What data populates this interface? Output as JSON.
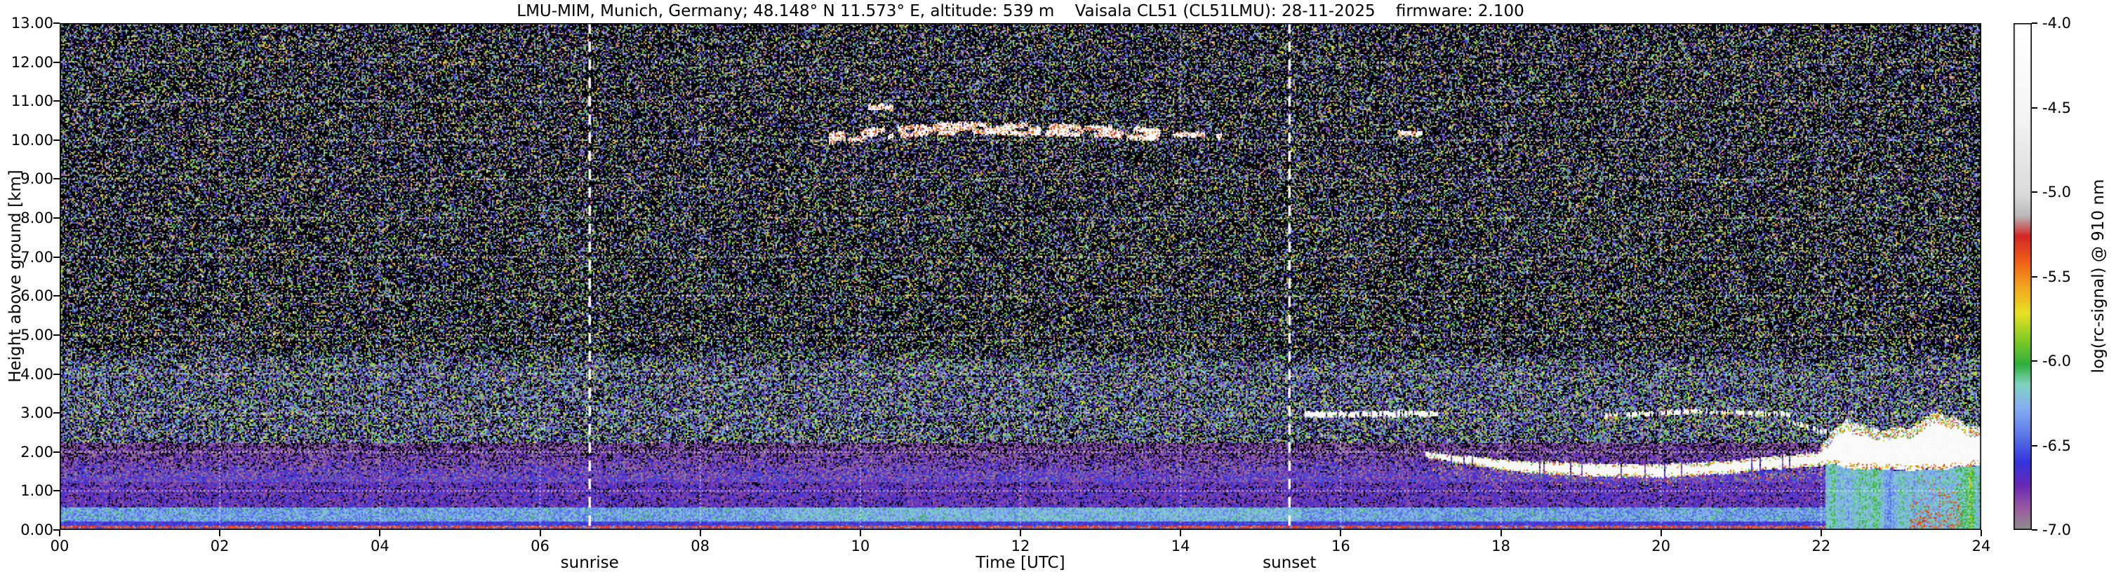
{
  "chart_data": {
    "type": "heatmap",
    "title": "LMU-MIM, Munich, Germany; 48.148° N 11.573° E, altitude: 539 m    Vaisala CL51 (CL51LMU): 28-11-2025    firmware: 2.100",
    "xlabel": "Time [UTC]",
    "ylabel": "Height above ground [km]",
    "xlim": [
      0,
      24
    ],
    "ylim": [
      0,
      13
    ],
    "x_ticks": [
      {
        "v": 0,
        "label": "00"
      },
      {
        "v": 2,
        "label": "02"
      },
      {
        "v": 4,
        "label": "04"
      },
      {
        "v": 6,
        "label": "06"
      },
      {
        "v": 8,
        "label": "08"
      },
      {
        "v": 10,
        "label": "10"
      },
      {
        "v": 12,
        "label": "12"
      },
      {
        "v": 14,
        "label": "14"
      },
      {
        "v": 16,
        "label": "16"
      },
      {
        "v": 18,
        "label": "18"
      },
      {
        "v": 20,
        "label": "20"
      },
      {
        "v": 22,
        "label": "22"
      },
      {
        "v": 24,
        "label": "24"
      }
    ],
    "y_ticks": [
      {
        "v": 0,
        "label": "0.00"
      },
      {
        "v": 1,
        "label": "1.00"
      },
      {
        "v": 2,
        "label": "2.00"
      },
      {
        "v": 3,
        "label": "3.00"
      },
      {
        "v": 4,
        "label": "4.00"
      },
      {
        "v": 5,
        "label": "5.00"
      },
      {
        "v": 6,
        "label": "6.00"
      },
      {
        "v": 7,
        "label": "7.00"
      },
      {
        "v": 8,
        "label": "8.00"
      },
      {
        "v": 9,
        "label": "9.00"
      },
      {
        "v": 10,
        "label": "10.00"
      },
      {
        "v": 11,
        "label": "11.00"
      },
      {
        "v": 12,
        "label": "12.00"
      },
      {
        "v": 13,
        "label": "13.00"
      }
    ],
    "grid": {
      "horizontal_every_km": 1,
      "vertical_every_h": 2,
      "style": "dotted",
      "color": "#ffffff"
    },
    "annotations": {
      "sunrise": {
        "t": 6.62,
        "label": "sunrise",
        "line_style": "dashed",
        "line_color": "#ffffff"
      },
      "sunset": {
        "t": 15.36,
        "label": "sunset",
        "line_style": "dashed",
        "line_color": "#ffffff"
      }
    },
    "colorbar": {
      "label": "log(rc-signal) @ 910 nm",
      "vmin": -7.0,
      "vmax": -4.0,
      "ticks": [
        {
          "v": -4.0,
          "label": "-4.0"
        },
        {
          "v": -4.5,
          "label": "-4.5"
        },
        {
          "v": -5.0,
          "label": "-5.0"
        },
        {
          "v": -5.5,
          "label": "-5.5"
        },
        {
          "v": -6.0,
          "label": "-6.0"
        },
        {
          "v": -6.5,
          "label": "-6.5"
        },
        {
          "v": -7.0,
          "label": "-7.0"
        }
      ],
      "under_color": "#000000",
      "stops": [
        {
          "v": -7.0,
          "color": "#8f8f8f"
        },
        {
          "v": -6.88,
          "color": "#9a5d9e"
        },
        {
          "v": -6.74,
          "color": "#6a28b4"
        },
        {
          "v": -6.6,
          "color": "#3434dc"
        },
        {
          "v": -6.44,
          "color": "#5a78e8"
        },
        {
          "v": -6.28,
          "color": "#86aef4"
        },
        {
          "v": -6.14,
          "color": "#7fd4c0"
        },
        {
          "v": -6.02,
          "color": "#2fae3c"
        },
        {
          "v": -5.88,
          "color": "#7ecb23"
        },
        {
          "v": -5.72,
          "color": "#e8e123"
        },
        {
          "v": -5.56,
          "color": "#f2a51e"
        },
        {
          "v": -5.4,
          "color": "#ee5a17"
        },
        {
          "v": -5.26,
          "color": "#d42727"
        },
        {
          "v": -5.14,
          "color": "#b8b8b8"
        },
        {
          "v": -5.02,
          "color": "#d9d9d9"
        },
        {
          "v": -4.55,
          "color": "#f4f4f4"
        },
        {
          "v": -4.0,
          "color": "#ffffff"
        }
      ]
    },
    "background": {
      "surface_blue_km": 0.05,
      "surface_red_line_km": [
        0.05,
        0.13
      ],
      "purple_blue_km": [
        0.13,
        0.25
      ],
      "blue_band_km": [
        0.25,
        0.58
      ],
      "magenta_zone_km": [
        0.58,
        1.25
      ],
      "gray_speckle_zone_km": [
        1.25,
        2.25
      ],
      "blue_haze_km": [
        2.25,
        4.7
      ],
      "free_atmosphere_black_fraction": 0.56
    },
    "features": [
      {
        "kind": "cirrus",
        "name": "cirrus-band",
        "t0": 9.6,
        "t1": 13.75,
        "path": [
          [
            9.6,
            10.05
          ],
          [
            10.3,
            10.2
          ],
          [
            11.2,
            10.32
          ],
          [
            12.4,
            10.28
          ],
          [
            13.1,
            10.22
          ],
          [
            13.75,
            10.15
          ]
        ],
        "streaks": 3,
        "gaplen": 16
      },
      {
        "kind": "cirrus",
        "name": "cirrus-wisp-1",
        "t0": 13.9,
        "t1": 14.65,
        "path": [
          [
            13.9,
            10.16
          ],
          [
            14.65,
            10.12
          ]
        ],
        "streaks": 1,
        "gaplen": 22
      },
      {
        "kind": "cirrus",
        "name": "cirrus-wisp-2",
        "t0": 16.7,
        "t1": 17.05,
        "path": [
          [
            16.7,
            10.2
          ],
          [
            17.05,
            10.2
          ]
        ],
        "streaks": 1,
        "gaplen": 20
      },
      {
        "kind": "cirrus",
        "name": "cirrus-fleck",
        "t0": 10.1,
        "t1": 10.45,
        "path": [
          [
            10.1,
            10.85
          ],
          [
            10.45,
            10.85
          ]
        ],
        "streaks": 1,
        "gaplen": 20
      },
      {
        "kind": "layer",
        "name": "cloud-layer-3km-evening",
        "t0": 15.55,
        "t1": 17.2,
        "path": [
          [
            15.55,
            2.98
          ],
          [
            17.2,
            3.0
          ]
        ],
        "gap": 0.3,
        "half_km": [
          0.03,
          0.07
        ],
        "fringe": 0.12
      },
      {
        "kind": "layer",
        "name": "cloud-layer-3km-night",
        "t0": 19.3,
        "t1": 21.6,
        "path": [
          [
            19.3,
            2.95
          ],
          [
            20.4,
            3.06
          ],
          [
            21.6,
            2.98
          ]
        ],
        "gap": 0.35,
        "half_km": [
          0.025,
          0.06
        ],
        "fringe": 0.3,
        "virga": 0.22
      },
      {
        "kind": "layer",
        "name": "descending-streak",
        "t0": 21.6,
        "t1": 22.4,
        "path": [
          [
            21.6,
            2.8
          ],
          [
            22.4,
            2.3
          ]
        ],
        "gap": 0.4,
        "half_km": [
          0.02,
          0.05
        ],
        "fringe": 0.3
      },
      {
        "kind": "layer",
        "name": "stratus-deck",
        "t0": 17.05,
        "t1": 22.1,
        "path": [
          [
            17.05,
            1.95
          ],
          [
            17.6,
            1.8
          ],
          [
            18.3,
            1.63
          ],
          [
            19.2,
            1.55
          ],
          [
            20.0,
            1.53
          ],
          [
            20.8,
            1.62
          ],
          [
            21.4,
            1.75
          ],
          [
            22.1,
            1.85
          ]
        ],
        "half": [
          [
            17.05,
            0.05
          ],
          [
            17.8,
            0.1
          ],
          [
            18.6,
            0.14
          ],
          [
            20.0,
            0.15
          ],
          [
            21.0,
            0.14
          ],
          [
            22.1,
            0.16
          ]
        ],
        "gap": 0.05,
        "fringe": 0.3,
        "virga": 0.12
      },
      {
        "kind": "precip",
        "name": "precipitation",
        "t0": 22.05,
        "t1": 24.0,
        "top_path": [
          [
            22.05,
            1.7
          ],
          [
            23.0,
            1.5
          ],
          [
            24.0,
            1.65
          ]
        ],
        "orange_t": [
          23.1,
          23.75
        ]
      },
      {
        "kind": "thick",
        "name": "thick-cloud",
        "t0": 22.0,
        "t1": 24.0,
        "base_path": [
          [
            22.0,
            1.75
          ],
          [
            22.5,
            1.6
          ],
          [
            23.0,
            1.55
          ],
          [
            23.5,
            1.6
          ],
          [
            24.0,
            1.7
          ]
        ],
        "top_path": [
          [
            22.0,
            2.2
          ],
          [
            22.3,
            2.9
          ],
          [
            22.7,
            2.5
          ],
          [
            23.1,
            2.6
          ],
          [
            23.45,
            3.05
          ],
          [
            23.8,
            2.7
          ],
          [
            24.0,
            2.6
          ]
        ],
        "fringe": 0.5
      }
    ]
  }
}
